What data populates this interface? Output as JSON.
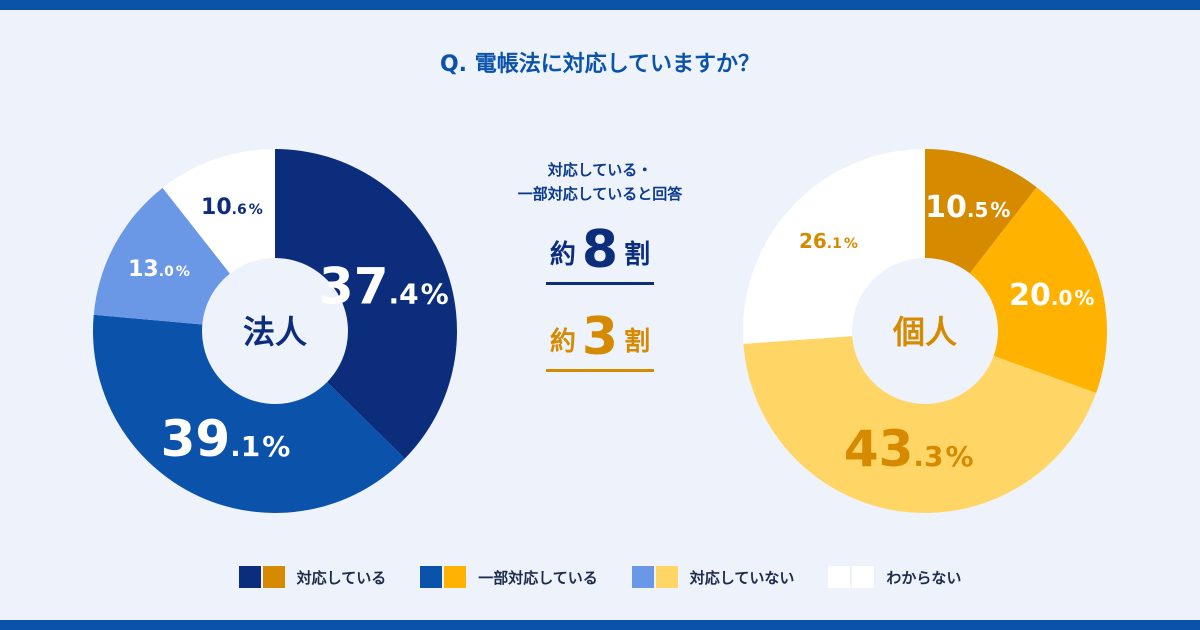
{
  "title": "Q. 電帳法に対応していますか？",
  "summary": {
    "line1": "対応している・",
    "line2": "一部対応していると回答"
  },
  "ratios": {
    "corporate": {
      "prefix": "約",
      "number": "8",
      "suffix": "割"
    },
    "individual": {
      "prefix": "約",
      "number": "3",
      "suffix": "割"
    }
  },
  "legend": [
    {
      "label": "対応している",
      "corp_color": "#0b2d7c",
      "ind_color": "#d68a00"
    },
    {
      "label": "一部対応している",
      "corp_color": "#0b52ab",
      "ind_color": "#ffb200"
    },
    {
      "label": "対応していない",
      "corp_color": "#6b98e6",
      "ind_color": "#ffd566"
    },
    {
      "label": "わからない",
      "corp_color": "#ffffff",
      "ind_color": "#ffffff"
    }
  ],
  "chart_data": [
    {
      "type": "pie",
      "center_label": "法人",
      "center_color": "#0b2d7c",
      "categories": [
        "対応している",
        "一部対応している",
        "対応していない",
        "わからない"
      ],
      "values": [
        37.4,
        39.1,
        13.0,
        10.6
      ],
      "labels": [
        {
          "int": "37",
          "dec": ".4",
          "pct": "%"
        },
        {
          "int": "39",
          "dec": ".1",
          "pct": "%"
        },
        {
          "int": "13",
          "dec": ".0",
          "pct": "%"
        },
        {
          "int": "10",
          "dec": ".6",
          "pct": "%"
        }
      ],
      "colors": [
        "#0b2d7c",
        "#0b52ab",
        "#6b98e6",
        "#ffffff"
      ],
      "label_colors": [
        "#ffffff",
        "#ffffff",
        "#ffffff",
        "#0b2d7c"
      ]
    },
    {
      "type": "pie",
      "center_label": "個人",
      "center_color": "#d68a00",
      "categories": [
        "対応している",
        "一部対応している",
        "対応していない",
        "わからない"
      ],
      "values": [
        10.5,
        20.0,
        43.3,
        26.1
      ],
      "labels": [
        {
          "int": "10",
          "dec": ".5",
          "pct": "%"
        },
        {
          "int": "20",
          "dec": ".0",
          "pct": "%"
        },
        {
          "int": "43",
          "dec": ".3",
          "pct": "%"
        },
        {
          "int": "26",
          "dec": ".1",
          "pct": "%"
        }
      ],
      "colors": [
        "#d68a00",
        "#ffb200",
        "#ffd566",
        "#ffffff"
      ],
      "label_colors": [
        "#ffffff",
        "#ffffff",
        "#d68a00",
        "#d68a00"
      ]
    }
  ]
}
